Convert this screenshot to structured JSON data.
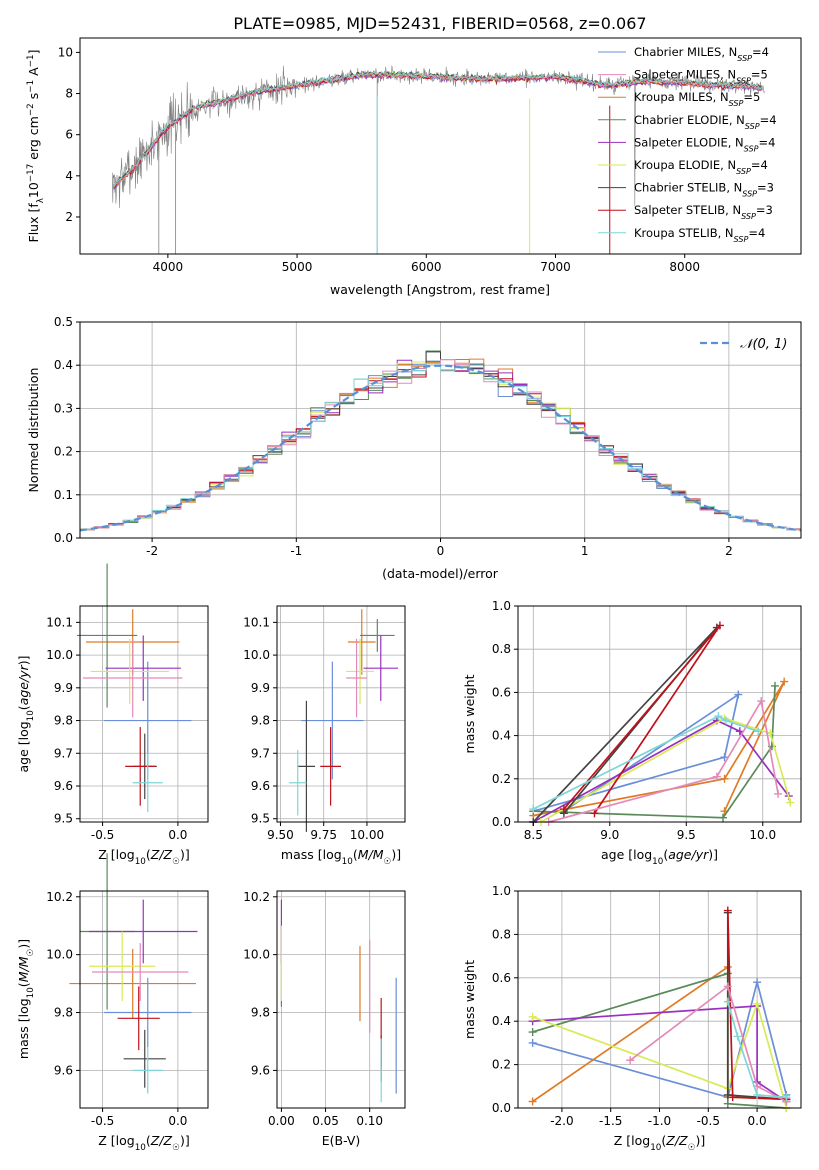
{
  "figure": {
    "title": "PLATE=0985, MJD=52431, FIBERID=0568, z=0.067",
    "model_colors": [
      "#6a8fd8",
      "#e07b25",
      "#5a8a5a",
      "#9a30c0",
      "#d8ea55",
      "#444444",
      "#c0111b",
      "#e48ab8",
      "#7fd6d6"
    ]
  },
  "chart_data": [
    {
      "id": "spectrum",
      "type": "line",
      "title": "PLATE=0985, MJD=52431, FIBERID=0568, z=0.067",
      "xlabel": "wavelength [Angstrom, rest frame]",
      "ylabel": "Flux [fλ10⁻¹⁷ erg cm⁻² s⁻¹ A⁻¹]",
      "xlim": [
        3320,
        8900
      ],
      "ylim": [
        0.2,
        10.7
      ],
      "xticks": [
        "4000",
        "5000",
        "6000",
        "7000",
        "8000"
      ],
      "yticks": [
        "2",
        "4",
        "6",
        "8",
        "10"
      ],
      "grid": false,
      "legend_position": "top-right",
      "data_color": "#808080",
      "continuum": {
        "x": [
          3570,
          3700,
          3850,
          3950,
          4050,
          4200,
          4400,
          4700,
          5000,
          5200,
          5500,
          5800,
          6100,
          6500,
          7000,
          7400,
          7700,
          8000,
          8300,
          8600
        ],
        "y": [
          3.4,
          4.2,
          5.2,
          6.1,
          6.6,
          7.3,
          7.6,
          8.1,
          8.4,
          8.6,
          8.9,
          8.9,
          8.8,
          8.7,
          8.8,
          8.4,
          8.6,
          8.5,
          8.4,
          8.3
        ]
      },
      "legend": [
        "Chabrier MILES, N_SSP=4",
        "Salpeter MILES, N_SSP=5",
        "Kroupa MILES, N_SSP=5",
        "Chabrier ELODIE, N_SSP=4",
        "Salpeter ELODIE, N_SSP=4",
        "Kroupa ELODIE, N_SSP=4",
        "Chabrier STELIB, N_SSP=3",
        "Salpeter STELIB, N_SSP=3",
        "Kroupa STELIB, N_SSP=4"
      ],
      "legend_colors": [
        "#6a8fd8",
        "#e48ab8",
        "#e07b25",
        "#5a8a5a",
        "#9a30c0",
        "#d8ea55",
        "#444444",
        "#c0111b",
        "#7fd6d6"
      ]
    },
    {
      "id": "residual_hist",
      "type": "bar",
      "xlabel": "(data-model)/error",
      "ylabel": "Normed distribution",
      "xlim": [
        -2.5,
        2.5
      ],
      "ylim": [
        0,
        0.5
      ],
      "xticks": [
        "-2",
        "-1",
        "0",
        "1",
        "2"
      ],
      "yticks": [
        "0.0",
        "0.1",
        "0.2",
        "0.3",
        "0.4",
        "0.5"
      ],
      "grid": true,
      "legend": [
        "𝒩(0, 1)"
      ],
      "legend_position": "top-right",
      "bin_width": 0.1
    },
    {
      "id": "age_vs_Z",
      "type": "scatter",
      "xlabel": "Z [log10(Z/Z☉)]",
      "ylabel": "age  [log10(age/yr)]",
      "xlim": [
        -0.65,
        0.2
      ],
      "ylim": [
        9.49,
        10.15
      ],
      "xticks": [
        "-0.5",
        "0.0"
      ],
      "yticks": [
        "9.5",
        "9.6",
        "9.7",
        "9.8",
        "9.9",
        "10.0",
        "10.1"
      ],
      "grid": true,
      "points": [
        {
          "x": -0.2,
          "y": 9.8,
          "xerr": 0.29,
          "yerr": 0.18
        },
        {
          "x": -0.3,
          "y": 10.04,
          "xerr": 0.31,
          "yerr": 0.1
        },
        {
          "x": -0.47,
          "y": 10.06,
          "xerr": 0.2,
          "yerr": 0.22
        },
        {
          "x": -0.23,
          "y": 9.96,
          "xerr": 0.25,
          "yerr": 0.1
        },
        {
          "x": -0.32,
          "y": 9.95,
          "xerr": 0.26,
          "yerr": 0.1
        },
        {
          "x": -0.22,
          "y": 9.66,
          "xerr": 0.08,
          "yerr": 0.1
        },
        {
          "x": -0.25,
          "y": 9.66,
          "xerr": 0.1,
          "yerr": 0.12
        },
        {
          "x": -0.3,
          "y": 9.93,
          "xerr": 0.33,
          "yerr": 0.12
        },
        {
          "x": -0.2,
          "y": 9.61,
          "xerr": 0.1,
          "yerr": 0.09
        }
      ]
    },
    {
      "id": "age_vs_mass",
      "type": "scatter",
      "xlabel": "mass [log10(M/M☉)]",
      "ylabel": "",
      "xlim": [
        9.48,
        10.22
      ],
      "ylim": [
        9.49,
        10.15
      ],
      "xticks": [
        "9.50",
        "9.75",
        "10.00"
      ],
      "yticks": [
        "9.5",
        "9.6",
        "9.7",
        "9.8",
        "9.9",
        "10.0",
        "10.1"
      ],
      "grid": true,
      "points": [
        {
          "x": 9.8,
          "y": 9.8,
          "xerr": 0.18,
          "yerr": 0.18
        },
        {
          "x": 9.97,
          "y": 10.04,
          "xerr": 0.08,
          "yerr": 0.1
        },
        {
          "x": 10.06,
          "y": 10.06,
          "xerr": 0.1,
          "yerr": 0.05
        },
        {
          "x": 10.08,
          "y": 9.96,
          "xerr": 0.1,
          "yerr": 0.1
        },
        {
          "x": 9.96,
          "y": 9.95,
          "xerr": 0.08,
          "yerr": 0.1
        },
        {
          "x": 9.65,
          "y": 9.66,
          "xerr": 0.05,
          "yerr": 0.2
        },
        {
          "x": 9.79,
          "y": 9.66,
          "xerr": 0.06,
          "yerr": 0.12
        },
        {
          "x": 9.94,
          "y": 9.93,
          "xerr": 0.06,
          "yerr": 0.12
        },
        {
          "x": 9.6,
          "y": 9.61,
          "xerr": 0.05,
          "yerr": 0.1
        }
      ]
    },
    {
      "id": "weight_vs_age",
      "type": "line",
      "xlabel": "age  [log10(age/yr)]",
      "ylabel": "mass weight",
      "xlim": [
        8.4,
        10.25
      ],
      "ylim": [
        0,
        1
      ],
      "xticks": [
        "8.5",
        "9.0",
        "9.5",
        "10.0"
      ],
      "yticks": [
        "0.0",
        "0.2",
        "0.4",
        "0.6",
        "0.8",
        "1.0"
      ],
      "grid": true,
      "series": [
        {
          "x": [
            8.5,
            9.75,
            9.84,
            8.7
          ],
          "y": [
            0.05,
            0.3,
            0.59,
            0.05
          ]
        },
        {
          "x": [
            8.5,
            9.75,
            10.14,
            9.75
          ],
          "y": [
            0.03,
            0.2,
            0.65,
            0.05
          ]
        },
        {
          "x": [
            8.5,
            9.74,
            10.06,
            10.08
          ],
          "y": [
            0.05,
            0.02,
            0.35,
            0.63
          ]
        },
        {
          "x": [
            8.5,
            9.7,
            9.85,
            10.17
          ],
          "y": [
            0.0,
            0.47,
            0.42,
            0.12
          ]
        },
        {
          "x": [
            8.55,
            9.75,
            10.05,
            10.18
          ],
          "y": [
            0.0,
            0.48,
            0.41,
            0.09
          ]
        },
        {
          "x": [
            8.5,
            9.7,
            8.7
          ],
          "y": [
            0.0,
            0.9,
            0.04
          ]
        },
        {
          "x": [
            8.9,
            9.72,
            8.7
          ],
          "y": [
            0.04,
            0.91,
            0.06
          ]
        },
        {
          "x": [
            8.6,
            9.7,
            9.99,
            10.1
          ],
          "y": [
            0.0,
            0.21,
            0.56,
            0.13
          ]
        },
        {
          "x": [
            8.5,
            9.71,
            9.76,
            9.97
          ],
          "y": [
            0.06,
            0.49,
            0.47,
            0.42
          ]
        }
      ]
    },
    {
      "id": "mass_vs_Z",
      "type": "scatter",
      "xlabel": "Z [log10(Z/Z☉)]",
      "ylabel": "mass [log10(M/M☉)]",
      "xlim": [
        -0.65,
        0.2
      ],
      "ylim": [
        9.47,
        10.22
      ],
      "xticks": [
        "-0.5",
        "0.0"
      ],
      "yticks": [
        "9.6",
        "9.8",
        "10.0",
        "10.2"
      ],
      "grid": true,
      "points": [
        {
          "x": -0.2,
          "y": 9.8,
          "xerr": 0.29,
          "yerr": 0.12
        },
        {
          "x": -0.3,
          "y": 9.9,
          "xerr": 0.42,
          "yerr": 0.12
        },
        {
          "x": -0.47,
          "y": 10.08,
          "xerr": 0.18,
          "yerr": 0.27
        },
        {
          "x": -0.23,
          "y": 10.08,
          "xerr": 0.36,
          "yerr": 0.11
        },
        {
          "x": -0.37,
          "y": 9.96,
          "xerr": 0.22,
          "yerr": 0.12
        },
        {
          "x": -0.22,
          "y": 9.64,
          "xerr": 0.14,
          "yerr": 0.1
        },
        {
          "x": -0.26,
          "y": 9.78,
          "xerr": 0.14,
          "yerr": 0.11
        },
        {
          "x": -0.25,
          "y": 9.94,
          "xerr": 0.32,
          "yerr": 0.1
        },
        {
          "x": -0.2,
          "y": 9.6,
          "xerr": 0.1,
          "yerr": 0.08
        }
      ]
    },
    {
      "id": "mass_vs_ebv",
      "type": "scatter",
      "xlabel": "E(B-V)",
      "ylabel": "",
      "xlim": [
        -0.005,
        0.14
      ],
      "ylim": [
        9.47,
        10.22
      ],
      "xticks": [
        "0.00",
        "0.05",
        "0.10"
      ],
      "yticks": [
        "9.6",
        "9.8",
        "10.0",
        "10.2"
      ],
      "grid": true,
      "points": [
        {
          "x": 0.13,
          "y": 9.72,
          "xerr": 0,
          "yerr": 0.2
        },
        {
          "x": 0.089,
          "y": 9.9,
          "xerr": 0,
          "yerr": 0.13
        },
        {
          "x": 0.0,
          "y": 9.96,
          "xerr": 0,
          "yerr": 0.14
        },
        {
          "x": 0.0,
          "y": 10.08,
          "xerr": 0,
          "yerr": 0.11
        },
        {
          "x": 0.0,
          "y": 9.97,
          "xerr": 0,
          "yerr": 0.13
        },
        {
          "x": 0.113,
          "y": 9.64,
          "xerr": 0,
          "yerr": 0.08
        },
        {
          "x": 0.113,
          "y": 9.73,
          "xerr": 0,
          "yerr": 0.12
        },
        {
          "x": 0.1,
          "y": 9.89,
          "xerr": 0,
          "yerr": 0.16
        },
        {
          "x": 0.113,
          "y": 9.6,
          "xerr": 0,
          "yerr": 0.11
        }
      ]
    },
    {
      "id": "weight_vs_Z",
      "type": "line",
      "xlabel": "Z [log10(Z/Z☉)]",
      "ylabel": "mass weight",
      "xlim": [
        -2.45,
        0.45
      ],
      "ylim": [
        0,
        1
      ],
      "xticks": [
        "-2.0",
        "-1.5",
        "-1.0",
        "-0.5",
        "0.0"
      ],
      "yticks": [
        "0.0",
        "0.2",
        "0.4",
        "0.6",
        "0.8",
        "1.0"
      ],
      "grid": true,
      "series": [
        {
          "x": [
            -2.3,
            -0.3,
            0.0,
            0.3
          ],
          "y": [
            0.3,
            0.05,
            0.58,
            0.06
          ]
        },
        {
          "x": [
            -2.3,
            -0.3,
            -0.3,
            0.3
          ],
          "y": [
            0.03,
            0.65,
            0.05,
            0.04
          ]
        },
        {
          "x": [
            -2.3,
            -0.3,
            -0.3,
            0.3
          ],
          "y": [
            0.35,
            0.62,
            0.02,
            0.0
          ]
        },
        {
          "x": [
            -2.3,
            0.0,
            0.0,
            0.3
          ],
          "y": [
            0.4,
            0.47,
            0.12,
            0.03
          ]
        },
        {
          "x": [
            -2.3,
            -0.3,
            0.0,
            0.3
          ],
          "y": [
            0.42,
            0.09,
            0.48,
            0.0
          ]
        },
        {
          "x": [
            -0.3,
            -0.3,
            0.3
          ],
          "y": [
            0.9,
            0.06,
            0.04
          ]
        },
        {
          "x": [
            -0.3,
            -0.25,
            0.3
          ],
          "y": [
            0.91,
            0.05,
            0.04
          ]
        },
        {
          "x": [
            -1.3,
            -0.3,
            0.0,
            0.3
          ],
          "y": [
            0.22,
            0.56,
            0.1,
            0.03
          ]
        },
        {
          "x": [
            -0.3,
            -0.2,
            0.0,
            0.3
          ],
          "y": [
            0.49,
            0.33,
            0.06,
            0.05
          ]
        }
      ]
    }
  ]
}
